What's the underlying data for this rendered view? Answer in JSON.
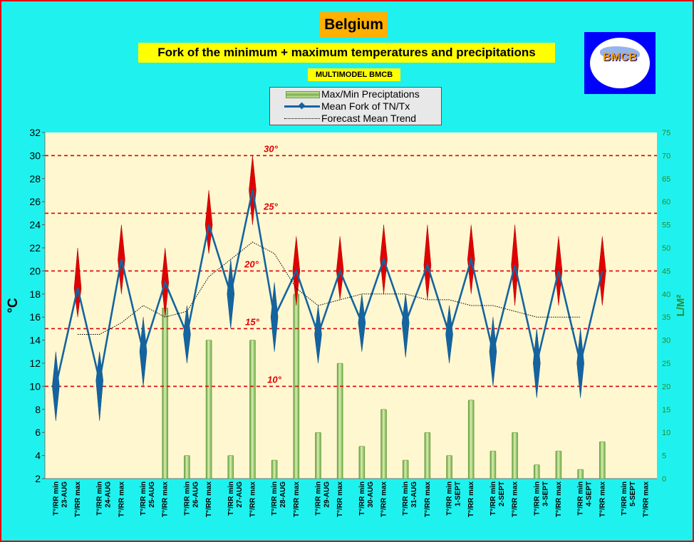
{
  "header": {
    "title": "Belgium",
    "subtitle": "Fork of the minimum + maximum temperatures and precipitations",
    "model": "MULTIMODEL BMCB",
    "logo_text": "BMCB"
  },
  "colors": {
    "background": "#1ff2ee",
    "plot_area": "#fff7d0",
    "mean_line": "#1464a0",
    "max_fork": "#e00000",
    "min_fork": "#1464a0",
    "threshold": "#e00000",
    "precip_bar": "#8fc060"
  },
  "chart_data": {
    "type": "line",
    "title": "Fork of the minimum + maximum temperatures and precipitations",
    "ylabel": "°C",
    "y2label": "L/M²",
    "ylim": [
      2,
      32
    ],
    "y2lim": [
      0,
      75
    ],
    "yticks": [
      2,
      4,
      6,
      8,
      10,
      12,
      14,
      16,
      18,
      20,
      22,
      24,
      26,
      28,
      30,
      32
    ],
    "y2ticks": [
      0,
      5,
      10,
      15,
      20,
      25,
      30,
      35,
      40,
      45,
      50,
      55,
      60,
      65,
      70,
      75
    ],
    "grid": false,
    "legend_position": "top-center",
    "legend": [
      "Max/Min Preciptations",
      "Mean Fork of TN/Tx",
      "Forecast Mean Trend"
    ],
    "categories": [
      [
        "T°/RR min",
        "23-AUG"
      ],
      [
        "T°/RR max",
        ""
      ],
      [
        "T°/RR min",
        "24-AUG"
      ],
      [
        "T°/RR max",
        ""
      ],
      [
        "T°/RR min",
        "25-AUG"
      ],
      [
        "T°/RR max",
        ""
      ],
      [
        "T°/RR min",
        "26-AUG"
      ],
      [
        "T°/RR max",
        ""
      ],
      [
        "T°/RR min",
        "27-AUG"
      ],
      [
        "T°/RR max",
        ""
      ],
      [
        "T°/RR min",
        "28-AUG"
      ],
      [
        "T°/RR max",
        ""
      ],
      [
        "T°/RR min",
        "29-AUG"
      ],
      [
        "T°/RR max",
        ""
      ],
      [
        "T°/RR min",
        "30-AUG"
      ],
      [
        "T°/RR max",
        ""
      ],
      [
        "T°/RR min",
        "31-AUG"
      ],
      [
        "T°/RR max",
        ""
      ],
      [
        "T°/RR min",
        "1-SEPT"
      ],
      [
        "T°/RR max",
        ""
      ],
      [
        "T°/RR min",
        "2-SEPT"
      ],
      [
        "T°/RR max",
        ""
      ],
      [
        "T°/RR min",
        "3-SEPT"
      ],
      [
        "T°/RR max",
        ""
      ],
      [
        "T°/RR min",
        "4-SEPT"
      ],
      [
        "T°/RR max",
        ""
      ],
      [
        "T°/RR min",
        "5-SEPT"
      ],
      [
        "T°/RR max",
        ""
      ]
    ],
    "thresholds": [
      {
        "value": 30,
        "label": "30°"
      },
      {
        "value": 25,
        "label": "25°"
      },
      {
        "value": 20,
        "label": "20°"
      },
      {
        "value": 15,
        "label": "15°"
      },
      {
        "value": 10,
        "label": "10°"
      }
    ],
    "series": [
      {
        "name": "Mean Fork of TN/Tx",
        "axis": "left",
        "values": [
          10,
          18.5,
          10.5,
          21,
          13,
          19,
          14.5,
          24,
          18,
          27,
          16,
          20,
          14.5,
          20,
          15.5,
          21,
          15.5,
          20.5,
          14.5,
          21,
          13,
          20.5,
          12,
          20,
          12,
          20,
          null,
          null
        ]
      },
      {
        "name": "Fork range",
        "axis": "left",
        "low": [
          7,
          16,
          7,
          18,
          10,
          16,
          12,
          21.5,
          15,
          24,
          13,
          17,
          12,
          17.5,
          13,
          18,
          12.5,
          17.5,
          12,
          18,
          10,
          17,
          9,
          17,
          9,
          17,
          null,
          null
        ],
        "high": [
          13,
          22,
          13,
          24,
          16,
          22,
          17,
          27,
          21,
          30,
          19,
          23,
          17,
          23,
          18,
          24,
          18,
          24,
          17,
          24,
          16,
          24,
          15,
          23,
          15,
          23,
          null,
          null
        ]
      },
      {
        "name": "Forecast Mean Trend",
        "axis": "left",
        "values": [
          null,
          14.5,
          14.5,
          15.5,
          17,
          16,
          16.5,
          19.5,
          21,
          22.5,
          21.5,
          18.5,
          17,
          17.5,
          18,
          18,
          18,
          17.5,
          17.5,
          17,
          17,
          16.5,
          16,
          16,
          16,
          null,
          null,
          null
        ]
      },
      {
        "name": "Max/Min Preciptations",
        "axis": "right",
        "type": "bar",
        "values": [
          0,
          0,
          0,
          0,
          0,
          37,
          5,
          30,
          5,
          30,
          4,
          40,
          10,
          25,
          7,
          15,
          4,
          10,
          5,
          17,
          6,
          10,
          3,
          6,
          2,
          8,
          0,
          0
        ]
      }
    ]
  }
}
